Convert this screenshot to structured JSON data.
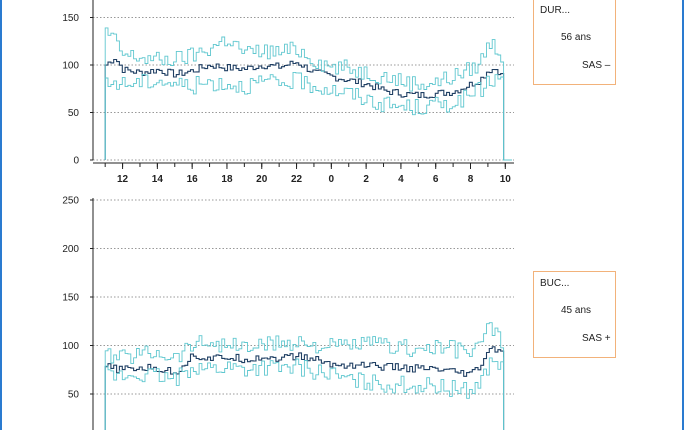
{
  "colors": {
    "frame": "#2a7bd0",
    "median": "#1f3f63",
    "band": "#5fc7cf",
    "box_border": "#f2b27a"
  },
  "chart_data": [
    {
      "type": "line",
      "ylim": [
        0,
        150
      ],
      "yticks": [
        "0",
        "50",
        "100",
        "150"
      ],
      "xticks": [
        "12",
        "14",
        "16",
        "18",
        "20",
        "22",
        "0",
        "2",
        "4",
        "6",
        "8",
        "10"
      ],
      "grid": "horizontal dotted",
      "series": [
        {
          "role": "median",
          "x": [
            11.0,
            11.5,
            12.0,
            13.0,
            14.0,
            15.0,
            16.0,
            17.0,
            18.0,
            19.0,
            20.0,
            21.0,
            22.0,
            23.0,
            0.0,
            1.0,
            2.0,
            3.0,
            4.0,
            5.0,
            6.0,
            7.0,
            8.0,
            8.5,
            9.0,
            9.5,
            9.9
          ],
          "values": [
            100,
            108,
            95,
            92,
            95,
            90,
            94,
            100,
            97,
            96,
            100,
            98,
            103,
            92,
            88,
            84,
            80,
            73,
            70,
            68,
            70,
            72,
            80,
            84,
            95,
            96,
            84
          ]
        },
        {
          "role": "upper",
          "x": [
            11.0,
            11.5,
            12.0,
            13.0,
            14.0,
            15.0,
            16.0,
            17.0,
            18.0,
            19.0,
            20.0,
            21.0,
            22.0,
            23.0,
            0.0,
            1.0,
            2.0,
            3.0,
            4.0,
            5.0,
            6.0,
            7.0,
            8.0,
            8.5,
            9.0,
            9.5,
            9.9
          ],
          "values": [
            135,
            125,
            110,
            108,
            105,
            106,
            110,
            118,
            128,
            112,
            115,
            113,
            117,
            105,
            98,
            96,
            92,
            88,
            83,
            80,
            82,
            88,
            96,
            102,
            124,
            118,
            100
          ]
        },
        {
          "role": "lower",
          "x": [
            11.0,
            11.5,
            12.0,
            13.0,
            14.0,
            15.0,
            16.0,
            17.0,
            18.0,
            19.0,
            20.0,
            21.0,
            22.0,
            23.0,
            0.0,
            1.0,
            2.0,
            3.0,
            4.0,
            5.0,
            6.0,
            7.0,
            8.0,
            8.5,
            9.0,
            9.5,
            9.9
          ],
          "values": [
            78,
            82,
            80,
            82,
            84,
            80,
            78,
            82,
            80,
            78,
            82,
            80,
            84,
            78,
            74,
            70,
            64,
            58,
            56,
            55,
            58,
            60,
            68,
            74,
            82,
            86,
            80
          ]
        }
      ]
    },
    {
      "type": "line",
      "ylim": [
        0,
        250
      ],
      "yticks": [
        "50",
        "100",
        "150",
        "200",
        "250"
      ],
      "grid": "horizontal dotted",
      "series": [
        {
          "role": "median",
          "x": [
            11.0,
            11.5,
            12.0,
            13.0,
            14.0,
            15.0,
            16.0,
            17.0,
            18.0,
            19.0,
            20.0,
            21.0,
            22.0,
            23.0,
            0.0,
            1.0,
            2.0,
            3.0,
            4.0,
            5.0,
            6.0,
            7.0,
            8.0,
            8.5,
            9.0,
            9.5,
            9.9
          ],
          "values": [
            78,
            76,
            75,
            77,
            76,
            72,
            90,
            86,
            88,
            86,
            88,
            87,
            89,
            86,
            80,
            80,
            80,
            78,
            77,
            76,
            75,
            72,
            70,
            78,
            95,
            96,
            92
          ]
        },
        {
          "role": "upper",
          "x": [
            11.0,
            11.5,
            12.0,
            13.0,
            14.0,
            15.0,
            16.0,
            17.0,
            18.0,
            19.0,
            20.0,
            21.0,
            22.0,
            23.0,
            0.0,
            1.0,
            2.0,
            3.0,
            4.0,
            5.0,
            6.0,
            7.0,
            8.0,
            8.5,
            9.0,
            9.5,
            9.9
          ],
          "values": [
            90,
            88,
            88,
            92,
            94,
            88,
            102,
            104,
            100,
            98,
            100,
            102,
            104,
            100,
            98,
            100,
            102,
            100,
            98,
            96,
            98,
            96,
            94,
            100,
            120,
            110,
            102
          ]
        },
        {
          "role": "lower",
          "x": [
            11.0,
            11.5,
            12.0,
            13.0,
            14.0,
            15.0,
            16.0,
            17.0,
            18.0,
            19.0,
            20.0,
            21.0,
            22.0,
            23.0,
            0.0,
            1.0,
            2.0,
            3.0,
            4.0,
            5.0,
            6.0,
            7.0,
            8.0,
            8.5,
            9.0,
            9.5,
            9.9
          ],
          "values": [
            70,
            68,
            68,
            70,
            68,
            64,
            80,
            76,
            78,
            76,
            78,
            76,
            78,
            74,
            70,
            64,
            62,
            60,
            60,
            58,
            58,
            55,
            54,
            62,
            80,
            84,
            80
          ]
        }
      ]
    }
  ],
  "boxes": [
    {
      "code": "DUR...",
      "age": "56 ans",
      "sas": "SAS –"
    },
    {
      "code": "BUC...",
      "age": "45 ans",
      "sas": "SAS +"
    }
  ]
}
